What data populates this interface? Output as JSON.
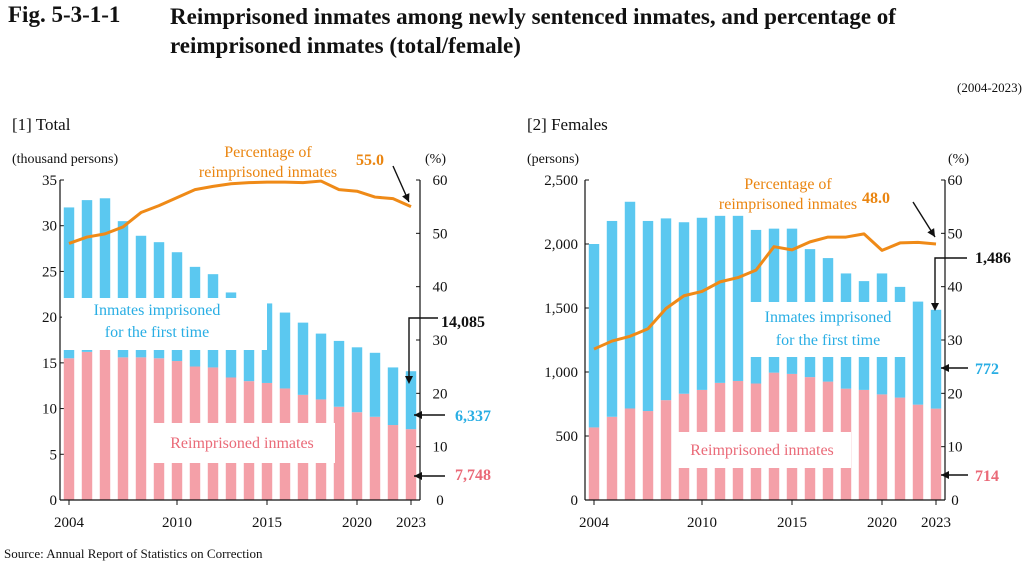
{
  "figure": {
    "label": "Fig. 5-3-1-1",
    "title": "Reimprisoned inmates among newly sentenced inmates, and percentage of reimprisoned inmates (total/female)",
    "period": "(2004-2023)",
    "source": "Source: Annual Report of Statistics on Correction"
  },
  "colors": {
    "first_time": "#5bc8f0",
    "reimprisoned": "#f4a0a8",
    "percentage": "#ef8a17",
    "first_time_label": "#29aee4",
    "reimprisoned_label": "#ea6a78",
    "percentage_label": "#ea8510"
  },
  "chart_data": [
    {
      "panel_title": "[1] Total",
      "type": "bar",
      "stacked": true,
      "years": [
        2004,
        2005,
        2006,
        2007,
        2008,
        2009,
        2010,
        2011,
        2012,
        2013,
        2014,
        2015,
        2016,
        2017,
        2018,
        2019,
        2020,
        2021,
        2022,
        2023
      ],
      "x_tick_labels": [
        "2004",
        "2010",
        "2015",
        "2020",
        "2023"
      ],
      "left_axis_label": "(thousand persons)",
      "left_ylim": [
        0,
        35
      ],
      "left_ticks": [
        "0",
        "5",
        "10",
        "15",
        "20",
        "25",
        "30",
        "35"
      ],
      "right_axis_label": "(%)",
      "right_ylim": [
        0,
        60
      ],
      "right_ticks": [
        "0",
        "10",
        "20",
        "30",
        "40",
        "50",
        "60"
      ],
      "series": [
        {
          "name": "Reimprisoned inmates",
          "values": [
            15.5,
            16.2,
            16.6,
            15.6,
            15.6,
            15.5,
            15.2,
            14.6,
            14.5,
            13.4,
            13.0,
            12.8,
            12.2,
            11.5,
            11.0,
            10.2,
            9.6,
            9.1,
            8.2,
            7.748
          ]
        },
        {
          "name": "Inmates imprisoned for the first time",
          "values": [
            16.5,
            16.6,
            16.4,
            14.9,
            13.3,
            12.7,
            11.9,
            10.9,
            10.2,
            9.3,
            8.8,
            8.7,
            8.3,
            7.9,
            7.2,
            7.2,
            7.1,
            7.0,
            6.3,
            6.337
          ]
        }
      ],
      "percentage": {
        "name": "Percentage of reimprisoned inmates",
        "values": [
          48.1,
          49.3,
          49.9,
          51.2,
          53.9,
          55.2,
          56.7,
          58.2,
          58.8,
          59.3,
          59.5,
          59.6,
          59.6,
          59.5,
          59.8,
          58.2,
          57.9,
          56.8,
          56.5,
          55.0
        ]
      },
      "annotations": {
        "percentage_text": "Percentage of reimprisoned inmates",
        "last_percentage": "55.0",
        "total_last": "14,085",
        "first_time_last": "6,337",
        "reimprisoned_last": "7,748",
        "first_time_text": "Inmates imprisoned for the first time",
        "reimprisoned_text": "Reimprisoned inmates"
      }
    },
    {
      "panel_title": "[2] Females",
      "type": "bar",
      "stacked": true,
      "years": [
        2004,
        2005,
        2006,
        2007,
        2008,
        2009,
        2010,
        2011,
        2012,
        2013,
        2014,
        2015,
        2016,
        2017,
        2018,
        2019,
        2020,
        2021,
        2022,
        2023
      ],
      "x_tick_labels": [
        "2004",
        "2010",
        "2015",
        "2020",
        "2023"
      ],
      "left_axis_label": "(persons)",
      "left_ylim": [
        0,
        2500
      ],
      "left_ticks": [
        "0",
        "500",
        "1,000",
        "1,500",
        "2,000",
        "2,500"
      ],
      "right_axis_label": "(%)",
      "right_ylim": [
        0,
        60
      ],
      "right_ticks": [
        "0",
        "10",
        "20",
        "30",
        "40",
        "50",
        "60"
      ],
      "series": [
        {
          "name": "Reimprisoned inmates",
          "values": [
            567,
            650,
            715,
            695,
            780,
            830,
            860,
            915,
            930,
            910,
            995,
            985,
            960,
            925,
            870,
            860,
            825,
            800,
            745,
            714
          ]
        },
        {
          "name": "Inmates imprisoned for the first time",
          "values": [
            1433,
            1530,
            1615,
            1485,
            1420,
            1340,
            1345,
            1305,
            1290,
            1200,
            1125,
            1135,
            1000,
            965,
            900,
            850,
            945,
            865,
            805,
            772
          ]
        },
        {
          "name": "",
          "values": []
        }
      ],
      "percentage": {
        "name": "Percentage of reimprisoned inmates",
        "values": [
          28.3,
          29.8,
          30.7,
          32.1,
          35.9,
          38.3,
          39.1,
          40.9,
          41.7,
          43.1,
          47.5,
          46.9,
          48.4,
          49.3,
          49.3,
          49.9,
          46.8,
          48.2,
          48.3,
          48.0
        ]
      },
      "annotations": {
        "percentage_text": "Percentage of reimprisoned inmates",
        "last_percentage": "48.0",
        "total_last": "1,486",
        "first_time_last": "772",
        "reimprisoned_last": "714",
        "first_time_text": "Inmates imprisoned for the first time",
        "reimprisoned_text": "Reimprisoned inmates"
      }
    }
  ]
}
